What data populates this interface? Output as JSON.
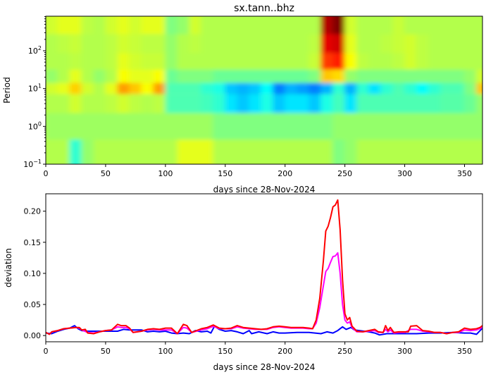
{
  "chart_data": [
    {
      "type": "heatmap",
      "title": "sx.tann..bhz",
      "xlabel": "days since 28-Nov-2024",
      "ylabel": "Period",
      "xlim": [
        0,
        365
      ],
      "ylim": [
        0.1,
        820
      ],
      "yscale": "log",
      "colormap": "jet",
      "grid": false,
      "x_ticks": [
        0,
        50,
        100,
        150,
        200,
        250,
        300,
        350
      ],
      "y_ticks": [
        "10^-1",
        "10^0",
        "10^1",
        "10^2"
      ],
      "y_tick_values": [
        0.1,
        1,
        10,
        100
      ],
      "x_bins": [
        0,
        10,
        20,
        30,
        40,
        50,
        60,
        70,
        80,
        90,
        100,
        110,
        120,
        130,
        140,
        150,
        160,
        170,
        180,
        190,
        200,
        210,
        220,
        230,
        240,
        250,
        260,
        270,
        280,
        290,
        300,
        310,
        320,
        330,
        340,
        350,
        360
      ],
      "y_bins": [
        500,
        150,
        50,
        20,
        10,
        5,
        1,
        0.2
      ],
      "values": [
        [
          0.58,
          0.6,
          0.6,
          0.56,
          0.55,
          0.58,
          0.6,
          0.58,
          0.6,
          0.6,
          0.5,
          0.52,
          0.58,
          0.55,
          0.55,
          0.55,
          0.55,
          0.55,
          0.55,
          0.55,
          0.55,
          0.55,
          0.55,
          0.95,
          1.0,
          0.58,
          0.55,
          0.55,
          0.55,
          0.57,
          0.55,
          0.55,
          0.55,
          0.55,
          0.55,
          0.55,
          0.55
        ],
        [
          0.55,
          0.56,
          0.57,
          0.55,
          0.55,
          0.56,
          0.58,
          0.57,
          0.56,
          0.56,
          0.52,
          0.55,
          0.56,
          0.55,
          0.55,
          0.55,
          0.55,
          0.55,
          0.55,
          0.55,
          0.55,
          0.55,
          0.56,
          0.9,
          0.92,
          0.6,
          0.55,
          0.55,
          0.56,
          0.57,
          0.58,
          0.56,
          0.55,
          0.55,
          0.55,
          0.55,
          0.55
        ],
        [
          0.55,
          0.55,
          0.56,
          0.55,
          0.55,
          0.56,
          0.6,
          0.58,
          0.57,
          0.57,
          0.52,
          0.55,
          0.55,
          0.55,
          0.55,
          0.55,
          0.55,
          0.55,
          0.55,
          0.55,
          0.55,
          0.55,
          0.57,
          0.82,
          0.85,
          0.62,
          0.56,
          0.55,
          0.55,
          0.56,
          0.58,
          0.56,
          0.55,
          0.55,
          0.55,
          0.55,
          0.55
        ],
        [
          0.52,
          0.55,
          0.6,
          0.55,
          0.52,
          0.55,
          0.62,
          0.6,
          0.6,
          0.62,
          0.48,
          0.5,
          0.5,
          0.5,
          0.48,
          0.48,
          0.48,
          0.48,
          0.48,
          0.48,
          0.48,
          0.48,
          0.5,
          0.68,
          0.66,
          0.52,
          0.5,
          0.5,
          0.5,
          0.5,
          0.5,
          0.5,
          0.5,
          0.5,
          0.5,
          0.52,
          0.58
        ],
        [
          0.58,
          0.6,
          0.67,
          0.58,
          0.55,
          0.6,
          0.72,
          0.68,
          0.62,
          0.72,
          0.45,
          0.45,
          0.45,
          0.42,
          0.4,
          0.32,
          0.3,
          0.32,
          0.38,
          0.25,
          0.3,
          0.28,
          0.25,
          0.3,
          0.42,
          0.3,
          0.42,
          0.35,
          0.42,
          0.45,
          0.42,
          0.38,
          0.42,
          0.45,
          0.45,
          0.5,
          0.68
        ],
        [
          0.55,
          0.55,
          0.58,
          0.55,
          0.55,
          0.56,
          0.58,
          0.56,
          0.55,
          0.56,
          0.45,
          0.45,
          0.45,
          0.44,
          0.42,
          0.35,
          0.32,
          0.35,
          0.4,
          0.32,
          0.35,
          0.35,
          0.32,
          0.4,
          0.44,
          0.35,
          0.45,
          0.45,
          0.45,
          0.45,
          0.45,
          0.45,
          0.45,
          0.46,
          0.46,
          0.48,
          0.52
        ],
        [
          0.53,
          0.53,
          0.53,
          0.53,
          0.53,
          0.53,
          0.53,
          0.53,
          0.53,
          0.53,
          0.53,
          0.53,
          0.53,
          0.53,
          0.5,
          0.5,
          0.5,
          0.5,
          0.5,
          0.5,
          0.5,
          0.5,
          0.5,
          0.5,
          0.52,
          0.52,
          0.52,
          0.52,
          0.52,
          0.52,
          0.52,
          0.52,
          0.52,
          0.52,
          0.52,
          0.52,
          0.52
        ],
        [
          0.55,
          0.55,
          0.42,
          0.52,
          0.55,
          0.55,
          0.55,
          0.55,
          0.55,
          0.55,
          0.55,
          0.6,
          0.6,
          0.6,
          0.55,
          0.55,
          0.55,
          0.55,
          0.55,
          0.55,
          0.55,
          0.55,
          0.55,
          0.55,
          0.5,
          0.52,
          0.55,
          0.55,
          0.55,
          0.55,
          0.55,
          0.55,
          0.55,
          0.55,
          0.55,
          0.55,
          0.55
        ]
      ]
    },
    {
      "type": "line",
      "xlabel": "days since 28-Nov-2024",
      "ylabel": "deviation",
      "xlim": [
        0,
        365
      ],
      "ylim": [
        -0.01,
        0.228
      ],
      "grid": false,
      "x_ticks": [
        0,
        50,
        100,
        150,
        200,
        250,
        300,
        350
      ],
      "y_ticks": [
        "0.00",
        "0.05",
        "0.10",
        "0.15",
        "0.20"
      ],
      "y_tick_values": [
        0,
        0.05,
        0.1,
        0.15,
        0.2
      ],
      "series": [
        {
          "color": "#0000ff",
          "x": [
            0,
            5,
            10,
            15,
            20,
            24,
            27,
            30,
            35,
            40,
            50,
            55,
            60,
            65,
            70,
            80,
            85,
            90,
            95,
            100,
            105,
            110,
            115,
            120,
            125,
            130,
            135,
            138,
            141,
            145,
            150,
            155,
            160,
            165,
            170,
            172,
            178,
            185,
            190,
            195,
            200,
            210,
            220,
            230,
            235,
            240,
            244,
            248,
            251,
            255,
            258,
            262,
            270,
            275,
            279,
            285,
            290,
            300,
            310,
            320,
            330,
            340,
            350,
            355,
            360,
            365
          ],
          "y": [
            0.004,
            0.003,
            0.007,
            0.01,
            0.012,
            0.016,
            0.011,
            0.008,
            0.007,
            0.007,
            0.007,
            0.007,
            0.007,
            0.01,
            0.009,
            0.009,
            0.006,
            0.007,
            0.006,
            0.007,
            0.004,
            0.003,
            0.004,
            0.003,
            0.008,
            0.006,
            0.007,
            0.004,
            0.015,
            0.01,
            0.007,
            0.008,
            0.006,
            0.003,
            0.008,
            0.003,
            0.006,
            0.003,
            0.006,
            0.004,
            0.004,
            0.005,
            0.005,
            0.003,
            0.006,
            0.004,
            0.008,
            0.014,
            0.01,
            0.013,
            0.009,
            0.008,
            0.006,
            0.004,
            0.001,
            0.003,
            0.003,
            0.003,
            0.003,
            0.004,
            0.004,
            0.005,
            0.004,
            0.004,
            0.002,
            0.012
          ]
        },
        {
          "color": "#ff00ff",
          "x": [
            0,
            3,
            5,
            10,
            15,
            20,
            25,
            28,
            30,
            35,
            40,
            45,
            50,
            55,
            60,
            63,
            67,
            70,
            73,
            80,
            85,
            90,
            95,
            100,
            105,
            110,
            115,
            118,
            122,
            130,
            135,
            140,
            145,
            150,
            155,
            160,
            165,
            170,
            175,
            180,
            185,
            190,
            195,
            200,
            205,
            210,
            215,
            220,
            223,
            226,
            229,
            232,
            234,
            236,
            238,
            240,
            242,
            244,
            246,
            248,
            250,
            252,
            254,
            256,
            260,
            265,
            270,
            275,
            278,
            282,
            284,
            286,
            288,
            291,
            295,
            300,
            305,
            310,
            315,
            320,
            325,
            330,
            335,
            340,
            345,
            350,
            355,
            360,
            365
          ],
          "y": [
            0.005,
            0.002,
            0.006,
            0.008,
            0.011,
            0.012,
            0.013,
            0.012,
            0.009,
            0.005,
            0.004,
            0.006,
            0.008,
            0.009,
            0.014,
            0.013,
            0.013,
            0.011,
            0.005,
            0.007,
            0.009,
            0.01,
            0.009,
            0.009,
            0.009,
            0.003,
            0.013,
            0.012,
            0.005,
            0.009,
            0.011,
            0.015,
            0.011,
            0.011,
            0.011,
            0.014,
            0.012,
            0.011,
            0.01,
            0.01,
            0.01,
            0.013,
            0.014,
            0.013,
            0.012,
            0.012,
            0.012,
            0.011,
            0.011,
            0.02,
            0.045,
            0.08,
            0.103,
            0.108,
            0.118,
            0.127,
            0.128,
            0.133,
            0.1,
            0.05,
            0.025,
            0.02,
            0.022,
            0.013,
            0.006,
            0.006,
            0.007,
            0.008,
            0.005,
            0.005,
            0.01,
            0.006,
            0.009,
            0.004,
            0.005,
            0.005,
            0.01,
            0.01,
            0.007,
            0.006,
            0.005,
            0.005,
            0.003,
            0.005,
            0.005,
            0.009,
            0.008,
            0.009,
            0.013
          ]
        },
        {
          "color": "#ff0000",
          "x": [
            0,
            3,
            5,
            10,
            15,
            20,
            25,
            28,
            30,
            33,
            35,
            40,
            45,
            50,
            55,
            60,
            63,
            67,
            70,
            73,
            80,
            85,
            90,
            95,
            100,
            105,
            110,
            115,
            118,
            122,
            130,
            135,
            140,
            145,
            150,
            155,
            160,
            165,
            170,
            175,
            180,
            185,
            190,
            195,
            200,
            205,
            210,
            215,
            220,
            223,
            226,
            229,
            232,
            234,
            236,
            238,
            240,
            242,
            244,
            246,
            248,
            250,
            252,
            254,
            256,
            260,
            265,
            270,
            275,
            278,
            282,
            284,
            286,
            288,
            291,
            295,
            300,
            303,
            305,
            310,
            315,
            320,
            325,
            330,
            335,
            340,
            345,
            350,
            355,
            360,
            363,
            365
          ],
          "y": [
            0.005,
            0.002,
            0.006,
            0.008,
            0.011,
            0.012,
            0.013,
            0.013,
            0.009,
            0.01,
            0.004,
            0.003,
            0.006,
            0.008,
            0.009,
            0.018,
            0.016,
            0.016,
            0.012,
            0.005,
            0.007,
            0.01,
            0.011,
            0.01,
            0.012,
            0.012,
            0.003,
            0.018,
            0.016,
            0.005,
            0.011,
            0.013,
            0.017,
            0.012,
            0.011,
            0.012,
            0.016,
            0.013,
            0.012,
            0.011,
            0.01,
            0.011,
            0.014,
            0.015,
            0.014,
            0.013,
            0.013,
            0.013,
            0.012,
            0.011,
            0.025,
            0.06,
            0.12,
            0.168,
            0.176,
            0.19,
            0.207,
            0.21,
            0.218,
            0.17,
            0.09,
            0.035,
            0.025,
            0.029,
            0.015,
            0.007,
            0.006,
            0.008,
            0.01,
            0.006,
            0.005,
            0.016,
            0.008,
            0.013,
            0.005,
            0.006,
            0.006,
            0.006,
            0.015,
            0.016,
            0.008,
            0.007,
            0.005,
            0.005,
            0.003,
            0.005,
            0.006,
            0.012,
            0.01,
            0.011,
            0.013,
            0.016
          ]
        }
      ]
    }
  ]
}
